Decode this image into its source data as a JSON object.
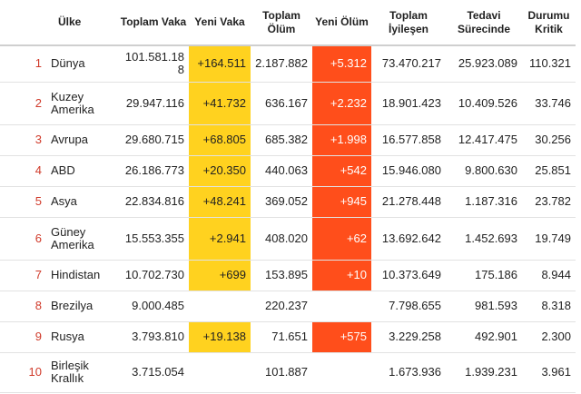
{
  "table": {
    "headers": {
      "rank": "",
      "country": "Ülke",
      "total_cases": "Toplam Vaka",
      "new_cases": "Yeni Vaka",
      "total_deaths": "Toplam Ölüm",
      "new_deaths": "Yeni Ölüm",
      "total_recovered": "Toplam İyileşen",
      "active": "Tedavi Sürecinde",
      "critical": "Durumu Kritik"
    },
    "rows": [
      {
        "rank": "1",
        "country": "Dünya",
        "total_cases": "101.581.188",
        "new_cases": "+164.511",
        "total_deaths": "2.187.882",
        "new_deaths": "+5.312",
        "total_recovered": "73.470.217",
        "active": "25.923.089",
        "critical": "110.321"
      },
      {
        "rank": "2",
        "country": "Kuzey Amerika",
        "total_cases": "29.947.116",
        "new_cases": "+41.732",
        "total_deaths": "636.167",
        "new_deaths": "+2.232",
        "total_recovered": "18.901.423",
        "active": "10.409.526",
        "critical": "33.746"
      },
      {
        "rank": "3",
        "country": "Avrupa",
        "total_cases": "29.680.715",
        "new_cases": "+68.805",
        "total_deaths": "685.382",
        "new_deaths": "+1.998",
        "total_recovered": "16.577.858",
        "active": "12.417.475",
        "critical": "30.256"
      },
      {
        "rank": "4",
        "country": "ABD",
        "total_cases": "26.186.773",
        "new_cases": "+20.350",
        "total_deaths": "440.063",
        "new_deaths": "+542",
        "total_recovered": "15.946.080",
        "active": "9.800.630",
        "critical": "25.851"
      },
      {
        "rank": "5",
        "country": "Asya",
        "total_cases": "22.834.816",
        "new_cases": "+48.241",
        "total_deaths": "369.052",
        "new_deaths": "+945",
        "total_recovered": "21.278.448",
        "active": "1.187.316",
        "critical": "23.782"
      },
      {
        "rank": "6",
        "country": "Güney Amerika",
        "total_cases": "15.553.355",
        "new_cases": "+2.941",
        "total_deaths": "408.020",
        "new_deaths": "+62",
        "total_recovered": "13.692.642",
        "active": "1.452.693",
        "critical": "19.749"
      },
      {
        "rank": "7",
        "country": "Hindistan",
        "total_cases": "10.702.730",
        "new_cases": "+699",
        "total_deaths": "153.895",
        "new_deaths": "+10",
        "total_recovered": "10.373.649",
        "active": "175.186",
        "critical": "8.944"
      },
      {
        "rank": "8",
        "country": "Brezilya",
        "total_cases": "9.000.485",
        "new_cases": "",
        "total_deaths": "220.237",
        "new_deaths": "",
        "total_recovered": "7.798.655",
        "active": "981.593",
        "critical": "8.318"
      },
      {
        "rank": "9",
        "country": "Rusya",
        "total_cases": "3.793.810",
        "new_cases": "+19.138",
        "total_deaths": "71.651",
        "new_deaths": "+575",
        "total_recovered": "3.229.258",
        "active": "492.901",
        "critical": "2.300"
      },
      {
        "rank": "10",
        "country": "Birleşik Krallık",
        "total_cases": "3.715.054",
        "new_cases": "",
        "total_deaths": "101.887",
        "new_deaths": "",
        "total_recovered": "1.673.936",
        "active": "1.939.231",
        "critical": "3.961"
      }
    ]
  },
  "colors": {
    "new_cases_highlight": "#ffd21f",
    "new_deaths_highlight": "#ff4e1b",
    "rank_text": "#d03a2a"
  }
}
